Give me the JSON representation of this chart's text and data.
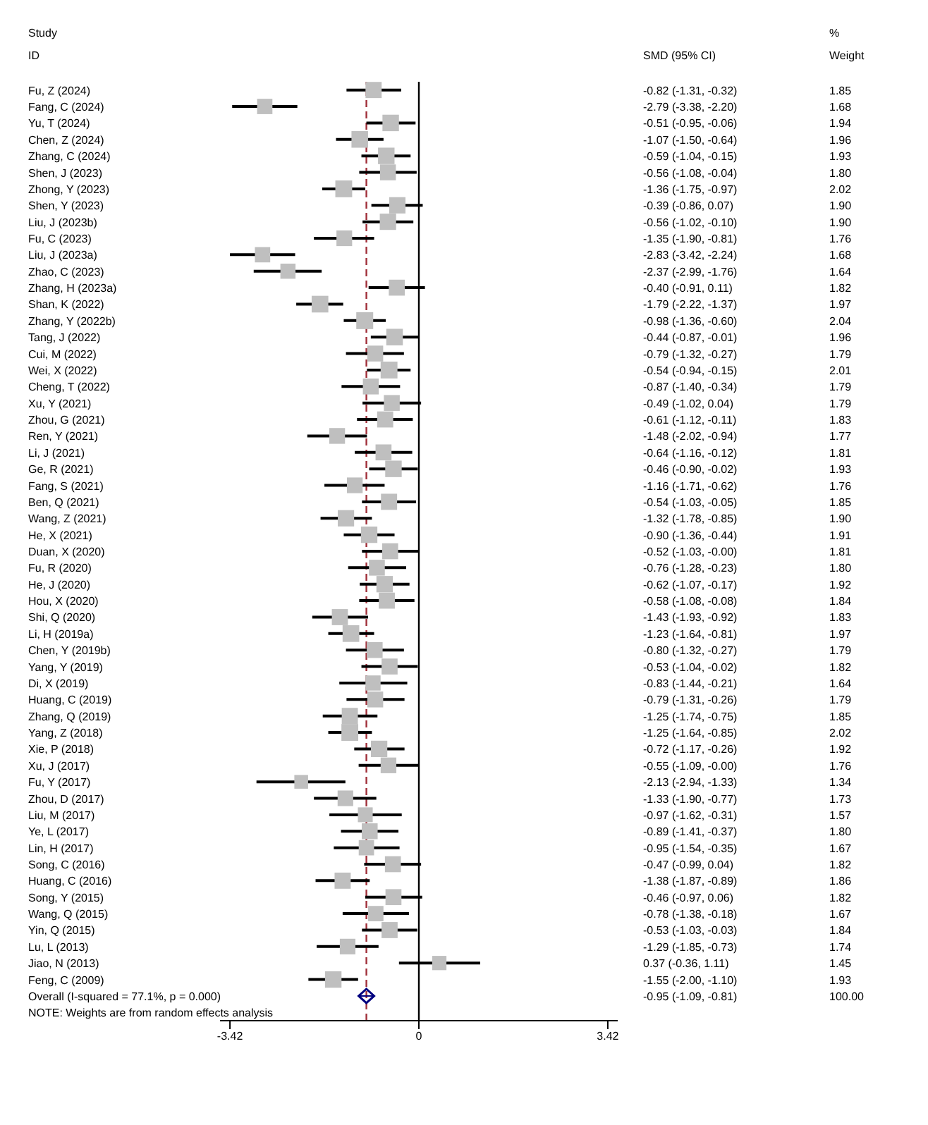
{
  "chart_data": {
    "type": "scatter",
    "orientation": "horizontal",
    "annotations": [
      "Study",
      "ID",
      "SMD (95% CI)",
      "%",
      "Weight",
      "-0.82 (-1.31, -0.32)",
      "1.85",
      "-2.79 (-3.38, -2.20)",
      "1.68",
      "-0.51 (-0.95, -0.06)",
      "1.94",
      "-1.07 (-1.50, -0.64)",
      "1.96",
      "-0.59 (-1.04, -0.15)",
      "1.93",
      "-0.56 (-1.08, -0.04)",
      "1.80",
      "-1.36 (-1.75, -0.97)",
      "2.02",
      "-0.39 (-0.86, 0.07)",
      "1.90",
      "-0.56 (-1.02, -0.10)",
      "1.90",
      "-1.35 (-1.90, -0.81)",
      "1.76",
      "-2.83 (-3.42, -2.24)",
      "1.68",
      "-2.37 (-2.99, -1.76)",
      "1.64",
      "-0.40 (-0.91, 0.11)",
      "1.82",
      "-1.79 (-2.22, -1.37)",
      "1.97",
      "-0.98 (-1.36, -0.60)",
      "2.04",
      "-0.44 (-0.87, -0.01)",
      "1.96",
      "-0.79 (-1.32, -0.27)",
      "1.79",
      "-0.54 (-0.94, -0.15)",
      "2.01",
      "-0.87 (-1.40, -0.34)",
      "1.79",
      "-0.49 (-1.02, 0.04)",
      "1.79",
      "-0.61 (-1.12, -0.11)",
      "1.83",
      "-1.48 (-2.02, -0.94)",
      "1.77",
      "-0.64 (-1.16, -0.12)",
      "1.81",
      "-0.46 (-0.90, -0.02)",
      "1.93",
      "-1.16 (-1.71, -0.62)",
      "1.76",
      "-0.54 (-1.03, -0.05)",
      "1.85",
      "-1.32 (-1.78, -0.85)",
      "1.90",
      "-0.90 (-1.36, -0.44)",
      "1.91",
      "-0.52 (-1.03, -0.00)",
      "1.81",
      "-0.76 (-1.28, -0.23)",
      "1.80",
      "-0.62 (-1.07, -0.17)",
      "1.92",
      "-0.58 (-1.08, -0.08)",
      "1.84",
      "-1.43 (-1.93, -0.92)",
      "1.83",
      "-1.23 (-1.64, -0.81)",
      "1.97",
      "-0.80 (-1.32, -0.27)",
      "1.79",
      "-0.53 (-1.04, -0.02)",
      "1.82",
      "-0.83 (-1.44, -0.21)",
      "1.64",
      "-0.79 (-1.31, -0.26)",
      "1.79",
      "-1.25 (-1.74, -0.75)",
      "1.85",
      "-1.25 (-1.64, -0.85)",
      "2.02",
      "-0.72 (-1.17, -0.26)",
      "1.92",
      "-0.55 (-1.09, -0.00)",
      "1.76",
      "-2.13 (-2.94, -1.33)",
      "1.34",
      "-1.33 (-1.90, -0.77)",
      "1.73",
      "-0.97 (-1.62, -0.31)",
      "1.57",
      "-0.89 (-1.41, -0.37)",
      "1.80",
      "-0.95 (-1.54, -0.35)",
      "1.67",
      "-0.47 (-0.99, 0.04)",
      "1.82",
      "-1.38 (-1.87, -0.89)",
      "1.86",
      "-0.46 (-0.97, 0.06)",
      "1.82",
      "-0.78 (-1.38, -0.18)",
      "1.67",
      "-0.53 (-1.03, -0.03)",
      "1.84",
      "-1.29 (-1.85, -0.73)",
      "1.74",
      "0.37 (-0.36, 1.11)",
      "1.45",
      "-1.55 (-2.00, -1.10)",
      "1.93",
      "-0.95 (-1.09, -0.81)",
      "100.00",
      "NOTE: Weights are from random effects analysis"
    ],
    "categories": [
      "Fu, Z (2024)",
      "Fang, C (2024)",
      "Yu, T (2024)",
      "Chen, Z (2024)",
      "Zhang, C (2024)",
      "Shen, J (2023)",
      "Zhong, Y (2023)",
      "Shen, Y (2023)",
      "Liu, J (2023b)",
      "Fu, C (2023)",
      "Liu, J (2023a)",
      "Zhao, C (2023)",
      "Zhang, H (2023a)",
      "Shan, K (2022)",
      "Zhang, Y (2022b)",
      "Tang, J (2022)",
      "Cui, M (2022)",
      "Wei, X (2022)",
      "Cheng, T (2022)",
      "Xu, Y (2021)",
      "Zhou, G (2021)",
      "Ren, Y (2021)",
      "Li, J (2021)",
      "Ge, R (2021)",
      "Fang, S (2021)",
      "Ben, Q (2021)",
      "Wang, Z (2021)",
      "He, X (2021)",
      "Duan, X (2020)",
      "Fu, R (2020)",
      "He, J (2020)",
      "Hou, X (2020)",
      "Shi, Q (2020)",
      "Li, H (2019a)",
      "Chen, Y (2019b)",
      "Yang, Y (2019)",
      "Di, X (2019)",
      "Huang, C (2019)",
      "Zhang, Q (2019)",
      "Yang, Z (2018)",
      "Xie, P (2018)",
      "Xu, J (2017)",
      "Fu, Y (2017)",
      "Zhou, D (2017)",
      "Liu, M (2017)",
      "Ye, L (2017)",
      "Lin, H (2017)",
      "Song, C (2016)",
      "Huang, C (2016)",
      "Song, Y (2015)",
      "Wang, Q (2015)",
      "Yin, Q (2015)",
      "Lu, L (2013)",
      "Jiao, N (2013)",
      "Feng, C (2009)",
      "Overall  (I-squared = 77.1%, p = 0.000)"
    ],
    "series": [
      {
        "type": "bubble",
        "marker": "square",
        "color": "#bfbfbf",
        "values": [
          -0.82,
          -2.79,
          -0.51,
          -1.07,
          -0.59,
          -0.56,
          -1.36,
          -0.39,
          -0.56,
          -1.35,
          -2.83,
          -2.37,
          -0.4,
          -1.79,
          -0.98,
          -0.44,
          -0.79,
          -0.54,
          -0.87,
          -0.49,
          -0.61,
          -1.48,
          -0.64,
          -0.46,
          -1.16,
          -0.54,
          -1.32,
          -0.9,
          -0.52,
          -0.76,
          -0.62,
          -0.58,
          -1.43,
          -1.23,
          -0.8,
          -0.53,
          -0.83,
          -0.79,
          -1.25,
          -1.25,
          -0.72,
          -0.55,
          -2.13,
          -1.33,
          -0.97,
          -0.89,
          -0.95,
          -0.47,
          -1.38,
          -0.46,
          -0.78,
          -0.53,
          -1.29,
          0.37,
          -1.55,
          null
        ],
        "errors": [
          [
            -1.31,
            -0.32
          ],
          [
            -3.38,
            -2.2
          ],
          [
            -0.95,
            -0.06
          ],
          [
            -1.5,
            -0.64
          ],
          [
            -1.04,
            -0.15
          ],
          [
            -1.08,
            -0.04
          ],
          [
            -1.75,
            -0.97
          ],
          [
            -0.86,
            0.07
          ],
          [
            -1.02,
            -0.1
          ],
          [
            -1.9,
            -0.81
          ],
          [
            -3.42,
            -2.24
          ],
          [
            -2.99,
            -1.76
          ],
          [
            -0.91,
            0.11
          ],
          [
            -2.22,
            -1.37
          ],
          [
            -1.36,
            -0.6
          ],
          [
            -0.87,
            -0.01
          ],
          [
            -1.32,
            -0.27
          ],
          [
            -0.94,
            -0.15
          ],
          [
            -1.4,
            -0.34
          ],
          [
            -1.02,
            0.04
          ],
          [
            -1.12,
            -0.11
          ],
          [
            -2.02,
            -0.94
          ],
          [
            -1.16,
            -0.12
          ],
          [
            -0.9,
            -0.02
          ],
          [
            -1.71,
            -0.62
          ],
          [
            -1.03,
            -0.05
          ],
          [
            -1.78,
            -0.85
          ],
          [
            -1.36,
            -0.44
          ],
          [
            -1.03,
            0
          ],
          [
            -1.28,
            -0.23
          ],
          [
            -1.07,
            -0.17
          ],
          [
            -1.08,
            -0.08
          ],
          [
            -1.93,
            -0.92
          ],
          [
            -1.64,
            -0.81
          ],
          [
            -1.32,
            -0.27
          ],
          [
            -1.04,
            -0.02
          ],
          [
            -1.44,
            -0.21
          ],
          [
            -1.31,
            -0.26
          ],
          [
            -1.74,
            -0.75
          ],
          [
            -1.64,
            -0.85
          ],
          [
            -1.17,
            -0.26
          ],
          [
            -1.09,
            0
          ],
          [
            -2.94,
            -1.33
          ],
          [
            -1.9,
            -0.77
          ],
          [
            -1.62,
            -0.31
          ],
          [
            -1.41,
            -0.37
          ],
          [
            -1.54,
            -0.35
          ],
          [
            -0.99,
            0.04
          ],
          [
            -1.87,
            -0.89
          ],
          [
            -0.97,
            0.06
          ],
          [
            -1.38,
            -0.18
          ],
          [
            -1.03,
            -0.03
          ],
          [
            -1.85,
            -0.73
          ],
          [
            -0.36,
            1.11
          ],
          [
            -2.0,
            -1.1
          ],
          null
        ],
        "sizes": [
          0.91,
          0.82,
          0.95,
          0.96,
          0.95,
          0.88,
          0.99,
          0.93,
          0.93,
          0.86,
          0.82,
          0.8,
          0.89,
          0.97,
          1,
          0.96,
          0.88,
          0.99,
          0.88,
          0.88,
          0.9,
          0.87,
          0.89,
          0.95,
          0.86,
          0.91,
          0.93,
          0.94,
          0.89,
          0.88,
          0.94,
          0.9,
          0.9,
          0.97,
          0.88,
          0.89,
          0.8,
          0.88,
          0.91,
          0.99,
          0.94,
          0.86,
          0.66,
          0.85,
          0.77,
          0.88,
          0.82,
          0.89,
          0.91,
          0.89,
          0.82,
          0.9,
          0.85,
          0.71,
          0.95,
          null
        ]
      },
      {
        "type": "scatter",
        "marker": "diamond",
        "color": "#00007f",
        "values": [
          null,
          null,
          null,
          null,
          null,
          null,
          null,
          null,
          null,
          null,
          null,
          null,
          null,
          null,
          null,
          null,
          null,
          null,
          null,
          null,
          null,
          null,
          null,
          null,
          null,
          null,
          null,
          null,
          null,
          null,
          null,
          null,
          null,
          null,
          null,
          null,
          null,
          null,
          null,
          null,
          null,
          null,
          null,
          null,
          null,
          null,
          null,
          null,
          null,
          null,
          null,
          null,
          null,
          null,
          null,
          -0.95
        ],
        "errors": [
          null,
          null,
          null,
          null,
          null,
          null,
          null,
          null,
          null,
          null,
          null,
          null,
          null,
          null,
          null,
          null,
          null,
          null,
          null,
          null,
          null,
          null,
          null,
          null,
          null,
          null,
          null,
          null,
          null,
          null,
          null,
          null,
          null,
          null,
          null,
          null,
          null,
          null,
          null,
          null,
          null,
          null,
          null,
          null,
          null,
          null,
          null,
          null,
          null,
          null,
          null,
          null,
          null,
          null,
          null,
          [
            -1.09,
            -0.81
          ]
        ]
      }
    ],
    "xlim": [
      -3.6,
      3.6
    ],
    "xticks": [
      -3.42,
      0,
      3.42
    ],
    "ref_lines": [
      {
        "axis": "x",
        "value": 0,
        "color": "#000000",
        "line_style": "solid"
      },
      {
        "axis": "x",
        "value": -0.95,
        "color": "#a0303a",
        "line_style": "dashed"
      }
    ]
  }
}
